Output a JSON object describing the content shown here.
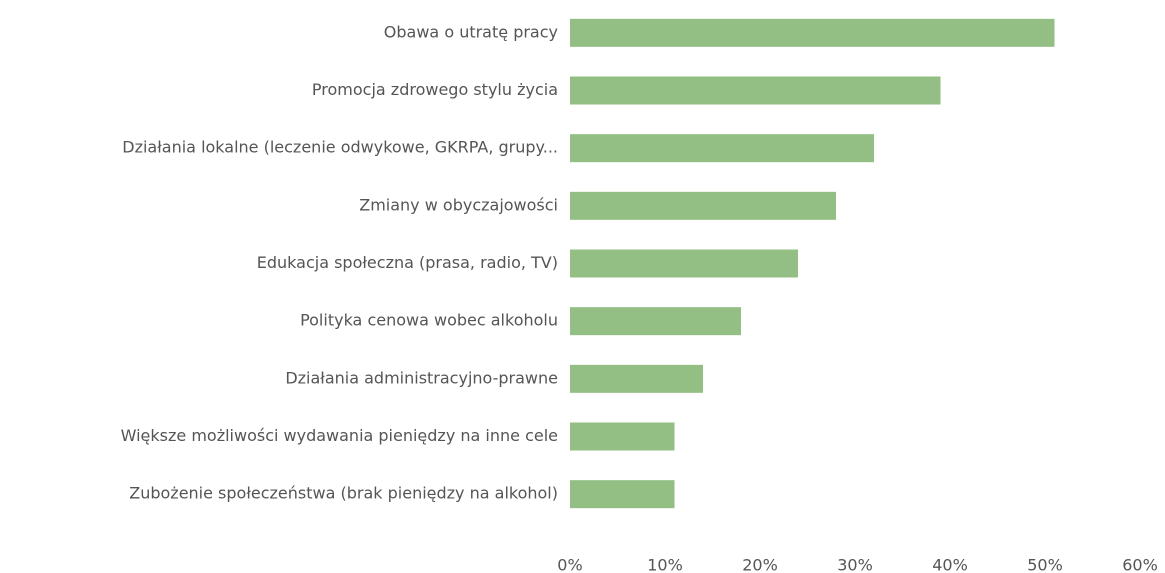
{
  "chart_data": {
    "type": "bar",
    "orientation": "horizontal",
    "categories": [
      "Obawa o utratę pracy",
      "Promocja zdrowego stylu życia",
      "Działania lokalne (leczenie odwykowe, GKRPA, grupy...",
      "Zmiany w obyczajowości",
      "Edukacja społeczna (prasa, radio, TV)",
      "Polityka cenowa wobec alkoholu",
      "Działania administracyjno-prawne",
      "Większe możliwości wydawania pieniędzy na inne cele",
      "Zubożenie społeczeństwa (brak pieniędzy na alkohol)"
    ],
    "values": [
      51,
      39,
      32,
      28,
      24,
      18,
      14,
      11,
      11
    ],
    "color": "#93bf85",
    "xlim": [
      0,
      60
    ],
    "xticks": [
      {
        "value": 0,
        "label": "0%"
      },
      {
        "value": 10,
        "label": "10%"
      },
      {
        "value": 20,
        "label": "20%"
      },
      {
        "value": 30,
        "label": "30%"
      },
      {
        "value": 40,
        "label": "40%"
      },
      {
        "value": 50,
        "label": "50%"
      },
      {
        "value": 60,
        "label": "60%"
      }
    ],
    "grid": false
  }
}
